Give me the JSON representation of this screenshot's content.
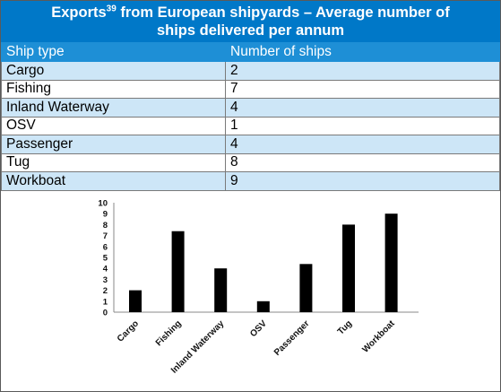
{
  "title": {
    "before": "Exports",
    "sup": "39",
    "after": " from European shipyards – Average number of",
    "line2": "ships delivered per annum"
  },
  "table": {
    "headers": [
      "Ship type",
      "Number of ships"
    ],
    "rows": [
      [
        "Cargo",
        "2"
      ],
      [
        "Fishing",
        "7"
      ],
      [
        "Inland Waterway",
        "4"
      ],
      [
        "OSV",
        "1"
      ],
      [
        "Passenger",
        "4"
      ],
      [
        "Tug",
        "8"
      ],
      [
        "Workboat",
        "9"
      ]
    ]
  },
  "chart_data": {
    "type": "bar",
    "categories": [
      "Cargo",
      "Fishing",
      "Inland Waterway",
      "OSV",
      "Passenger",
      "Tug",
      "Workboat"
    ],
    "values": [
      2,
      7.4,
      4,
      1,
      4.4,
      8,
      9
    ],
    "ylim": [
      0,
      10
    ],
    "yticks": [
      "0",
      "1",
      "2",
      "3",
      "4",
      "5",
      "6",
      "7",
      "8",
      "9",
      "10"
    ],
    "xlabel": "",
    "ylabel": "",
    "grid": false,
    "bar_color": "#000000"
  },
  "colors": {
    "title_bg": "#0078c8",
    "header_bg": "#1e8fd6",
    "row_alt_bg": "#cde6f7"
  }
}
